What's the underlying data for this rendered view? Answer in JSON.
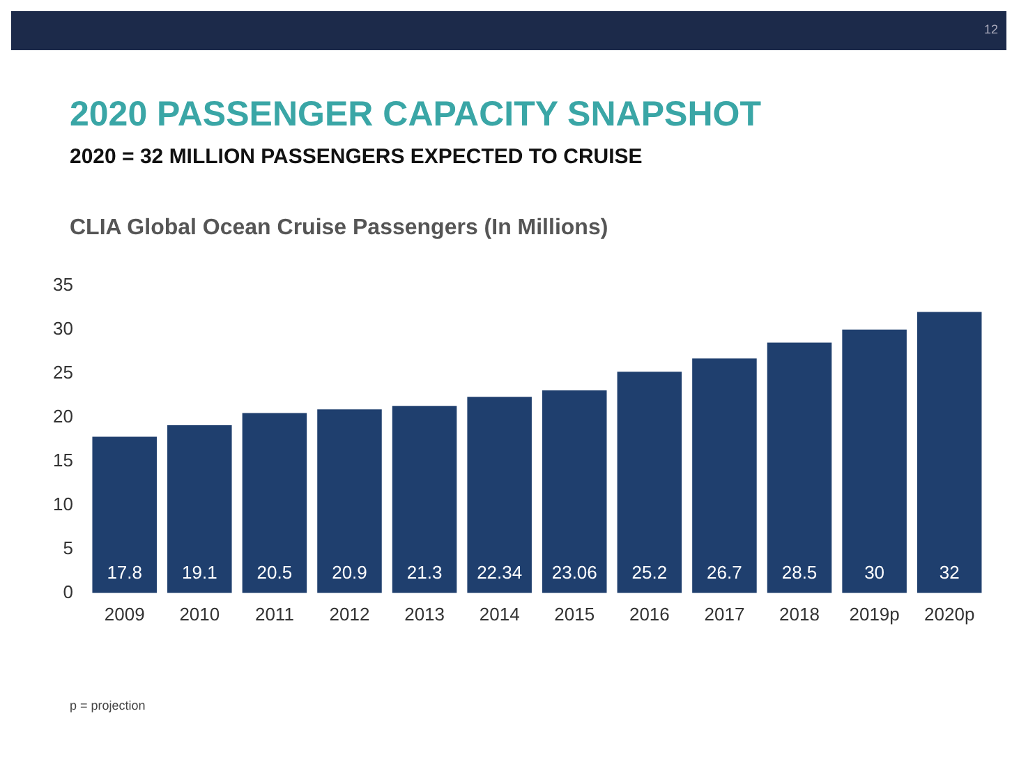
{
  "chart_data": {
    "type": "bar",
    "title": "2020 PASSENGER CAPACITY SNAPSHOT",
    "subtitle": "2020 = 32 MILLION PASSENGERS EXPECTED TO CRUISE",
    "annotations": [
      "CLIA Global Ocean Cruise Passengers (In Millions)",
      "p = projection",
      "12"
    ],
    "categories": [
      "2009",
      "2010",
      "2011",
      "2012",
      "2013",
      "2014",
      "2015",
      "2016",
      "2017",
      "2018",
      "2019p",
      "2020p"
    ],
    "values": [
      17.8,
      19.1,
      20.5,
      20.9,
      21.3,
      22.34,
      23.06,
      25.2,
      26.7,
      28.5,
      30,
      32
    ],
    "color": "#1f3f6e",
    "data_labels": true,
    "ylim": [
      0,
      35
    ],
    "yticks": [
      0,
      5,
      10,
      15,
      20,
      25,
      30,
      35
    ],
    "grid": false,
    "legend": false
  }
}
